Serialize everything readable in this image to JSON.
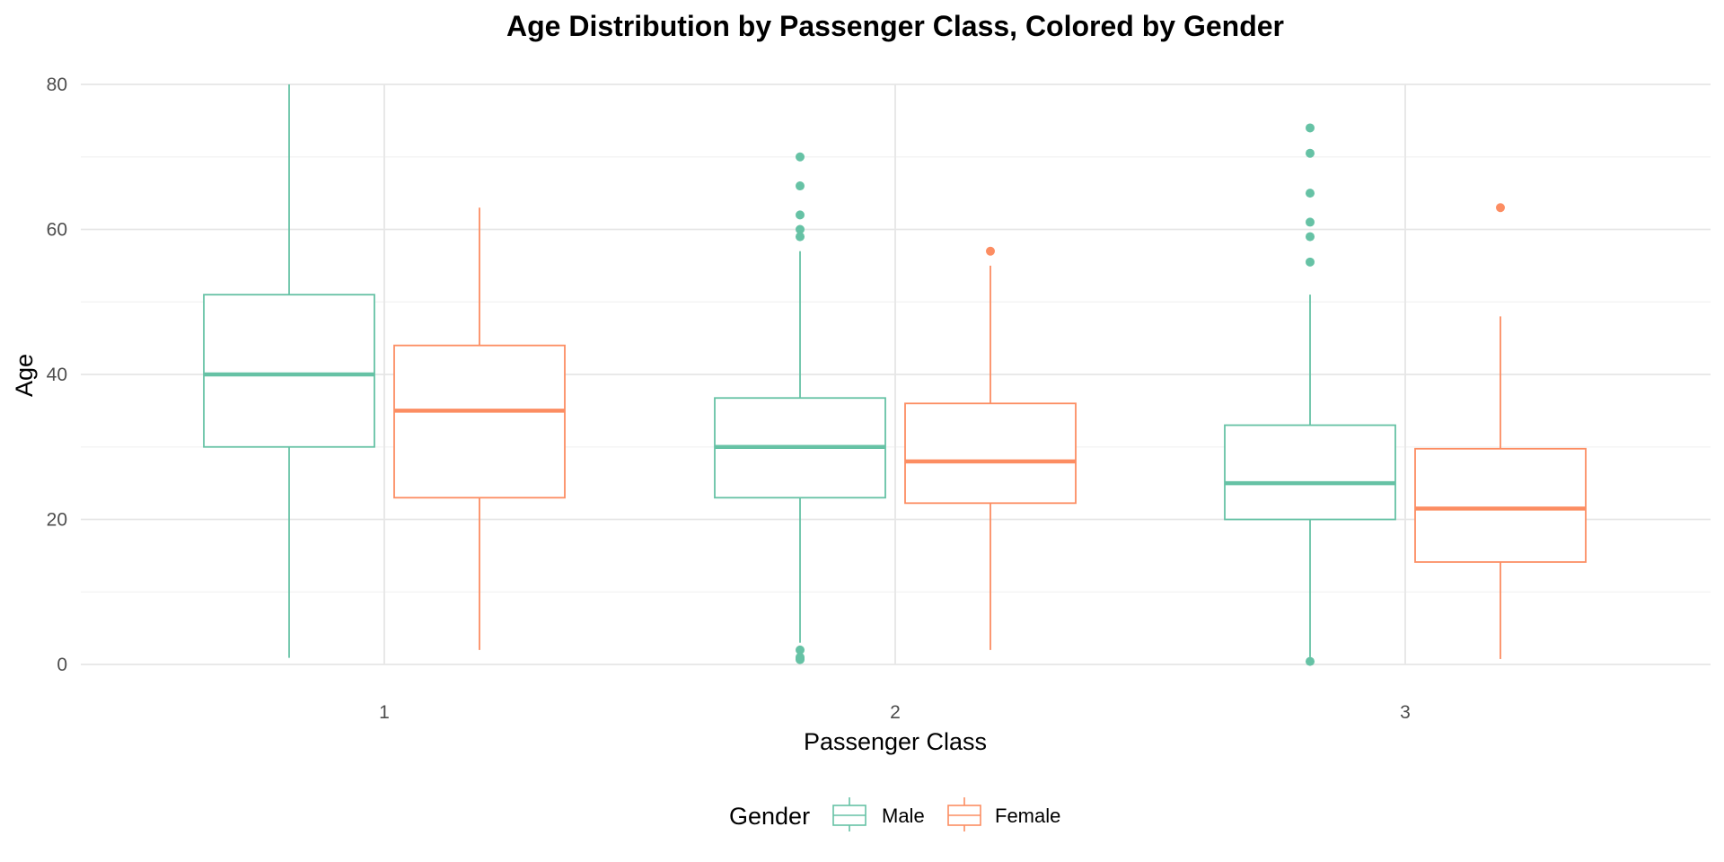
{
  "chart_data": {
    "type": "boxplot",
    "title": "Age Distribution by Passenger Class, Colored by Gender",
    "xlabel": "Passenger Class",
    "ylabel": "Age",
    "categories": [
      "1",
      "2",
      "3"
    ],
    "y_ticks": [
      0,
      20,
      40,
      60,
      80
    ],
    "ylim": [
      0,
      80
    ],
    "grid": true,
    "legend": {
      "title": "Gender",
      "position": "bottom"
    },
    "series": [
      {
        "name": "Male",
        "color": "#66c2a5",
        "boxes": [
          {
            "category": "1",
            "whisker_low": 0.92,
            "q1": 30,
            "median": 40,
            "q3": 51,
            "whisker_high": 80,
            "outliers": []
          },
          {
            "category": "2",
            "whisker_low": 3,
            "q1": 23,
            "median": 30,
            "q3": 36.75,
            "whisker_high": 57,
            "outliers": [
              0.67,
              0.83,
              1,
              2,
              59,
              60,
              62,
              66,
              70
            ]
          },
          {
            "category": "3",
            "whisker_low": 1,
            "q1": 20,
            "median": 25,
            "q3": 33,
            "whisker_high": 51,
            "outliers": [
              0.42,
              55.5,
              59,
              61,
              65,
              70.5,
              74
            ]
          }
        ]
      },
      {
        "name": "Female",
        "color": "#fc8d62",
        "boxes": [
          {
            "category": "1",
            "whisker_low": 2,
            "q1": 23,
            "median": 35,
            "q3": 44,
            "whisker_high": 63,
            "outliers": []
          },
          {
            "category": "2",
            "whisker_low": 2,
            "q1": 22.25,
            "median": 28,
            "q3": 36,
            "whisker_high": 55,
            "outliers": [
              57
            ]
          },
          {
            "category": "3",
            "whisker_low": 0.75,
            "q1": 14.125,
            "median": 21.5,
            "q3": 29.75,
            "whisker_high": 48,
            "outliers": [
              63
            ]
          }
        ]
      }
    ]
  }
}
